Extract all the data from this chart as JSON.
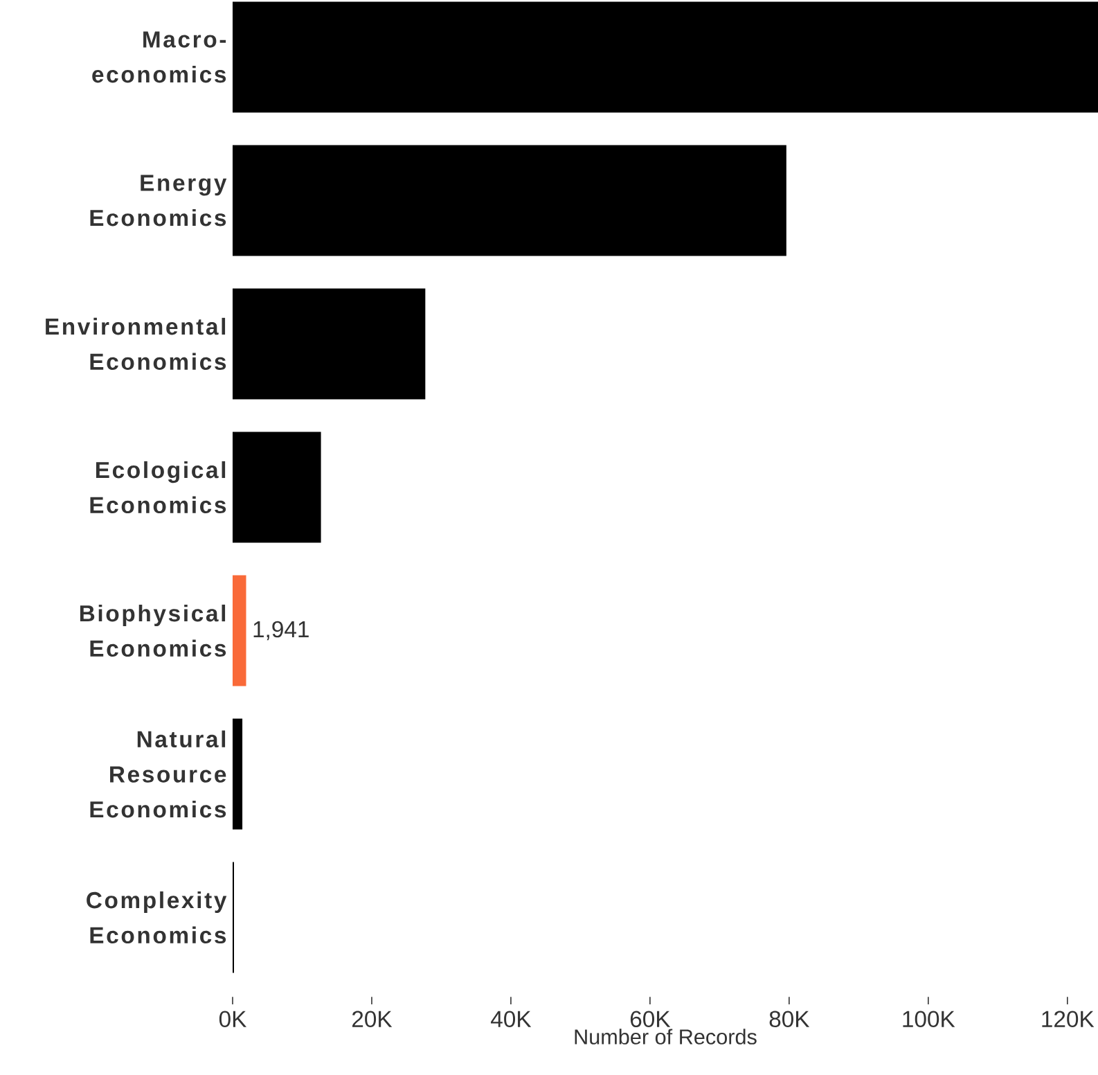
{
  "chart_data": {
    "type": "bar",
    "orientation": "horizontal",
    "xlabel": "Number of Records",
    "categories": [
      "Macro-economics",
      "Energy Economics",
      "Environmental Economics",
      "Ecological Economics",
      "Biophysical Economics",
      "Natural Resource Economics",
      "Complexity Economics"
    ],
    "values": [
      124400,
      79600,
      27700,
      12700,
      1941,
      1400,
      200
    ],
    "colors": [
      "#000000",
      "#000000",
      "#000000",
      "#000000",
      "#f96a39",
      "#000000",
      "#000000"
    ],
    "value_labels": [
      null,
      null,
      null,
      null,
      "1,941",
      null,
      null
    ],
    "xlim": [
      0,
      124400
    ],
    "xticks": [
      {
        "value": 0,
        "label": "0K"
      },
      {
        "value": 20000,
        "label": "20K"
      },
      {
        "value": 40000,
        "label": "40K"
      },
      {
        "value": 60000,
        "label": "60K"
      },
      {
        "value": 80000,
        "label": "80K"
      },
      {
        "value": 100000,
        "label": "100K"
      },
      {
        "value": 120000,
        "label": "120K"
      }
    ],
    "grid": false
  }
}
